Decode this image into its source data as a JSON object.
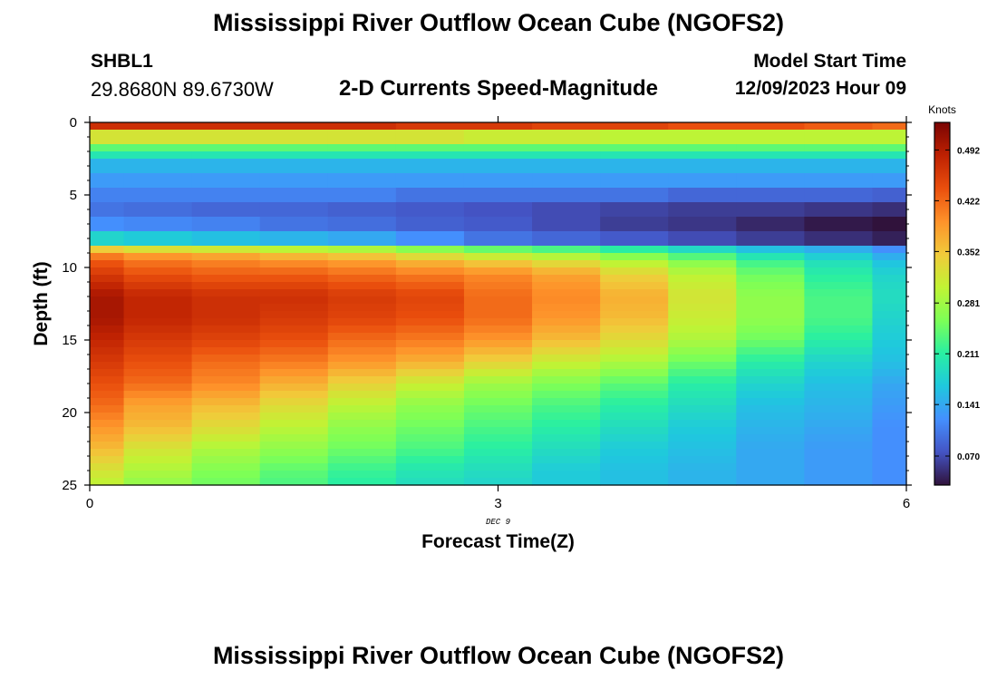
{
  "header": {
    "title": "Mississippi River Outflow Ocean Cube (NGOFS2)",
    "station": "SHBL1",
    "coords": "29.8680N  89.6730W",
    "subtitle": "2-D Currents Speed-Magnitude",
    "start_label": "Model Start Time",
    "start_value": "12/09/2023 Hour 09"
  },
  "footer": {
    "title": "Mississippi River Outflow Ocean Cube (NGOFS2)"
  },
  "chart_data": {
    "type": "heatmap",
    "title": "2-D Currents Speed-Magnitude",
    "xlabel": "Forecast Time(Z)",
    "ylabel": "Depth (ft)",
    "date_annotation": "DEC 9",
    "x_ticks": [
      "0",
      "3",
      "6"
    ],
    "y_ticks": [
      "0",
      "5",
      "10",
      "15",
      "20",
      "25"
    ],
    "xlim": [
      0,
      6
    ],
    "ylim": [
      0,
      25
    ],
    "x_centers": [
      0,
      0.5,
      1,
      1.5,
      2,
      2.5,
      3,
      3.5,
      4,
      4.5,
      5,
      5.5,
      6
    ],
    "depth_bounds": [
      0,
      0.5,
      1,
      1.5,
      2,
      2.5,
      3,
      3.5,
      4,
      4.5,
      5,
      5.5,
      6,
      6.5,
      7,
      7.5,
      8,
      8.5,
      9,
      9.5,
      10,
      10.5,
      11,
      11.5,
      12,
      12.5,
      13,
      13.5,
      14,
      14.5,
      15,
      15.5,
      16,
      16.5,
      17,
      17.5,
      18,
      18.5,
      19,
      19.5,
      20,
      20.5,
      21,
      21.5,
      22,
      22.5,
      23,
      23.5,
      24,
      24.5,
      25
    ],
    "colorbar": {
      "label": "Knots",
      "min": 0.03,
      "max": 0.53,
      "tick_labels": [
        "0.070",
        "0.141",
        "0.211",
        "0.281",
        "0.352",
        "0.422",
        "0.492"
      ],
      "stops": [
        "#30123b",
        "#4454c4",
        "#4490fe",
        "#1fc8de",
        "#29efa2",
        "#7dff56",
        "#c1f334",
        "#f1ca3a",
        "#fe922a",
        "#ea4f0d",
        "#be2102",
        "#7a0403"
      ]
    },
    "legend_position": "right"
  }
}
